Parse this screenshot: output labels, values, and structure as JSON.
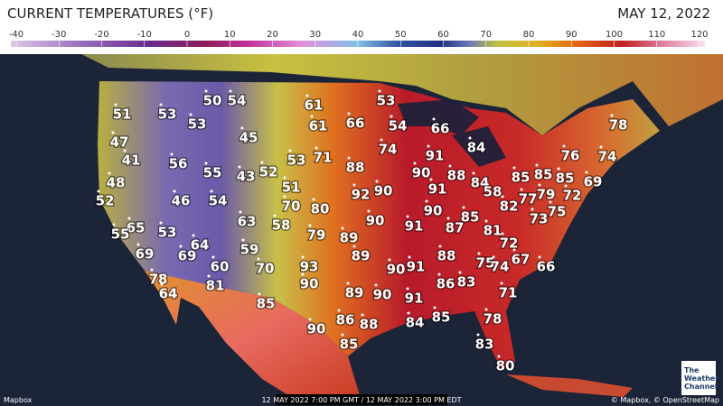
{
  "header": {
    "title": "CURRENT TEMPERATURES (°F)",
    "date": "MAY 12, 2022"
  },
  "scale": {
    "ticks": [
      -40,
      -30,
      -20,
      -10,
      0,
      10,
      20,
      30,
      40,
      50,
      60,
      70,
      80,
      90,
      100,
      110,
      120
    ]
  },
  "readings": [
    51,
    53,
    50,
    54,
    53,
    47,
    45,
    41,
    56,
    55,
    43,
    52,
    48,
    52,
    46,
    54,
    61,
    61,
    66,
    53,
    54,
    66,
    78,
    74,
    53,
    71,
    88,
    91,
    84,
    76,
    74,
    90,
    88,
    84,
    85,
    85,
    85,
    69,
    51,
    92,
    90,
    91,
    58,
    77,
    79,
    72,
    70,
    80,
    90,
    82,
    75,
    73,
    85,
    65,
    53,
    55,
    63,
    58,
    90,
    91,
    87,
    81,
    79,
    89,
    72,
    69,
    64,
    59,
    89,
    88,
    67,
    75,
    74,
    66,
    69,
    60,
    70,
    93,
    90,
    91,
    78,
    90,
    81,
    86,
    83,
    64,
    89,
    90,
    91,
    71,
    85,
    86,
    88,
    84,
    85,
    78,
    90,
    85,
    83,
    80
  ],
  "footer": {
    "credit": "Mapbox",
    "timestamp": "12 MAY 2022 7:00 PM GMT / 12 MAY 2022 3:00 PM EDT",
    "attribution": "© Mapbox, © OpenStreetMap",
    "logo": [
      "The",
      "Weather",
      "Channel"
    ]
  }
}
